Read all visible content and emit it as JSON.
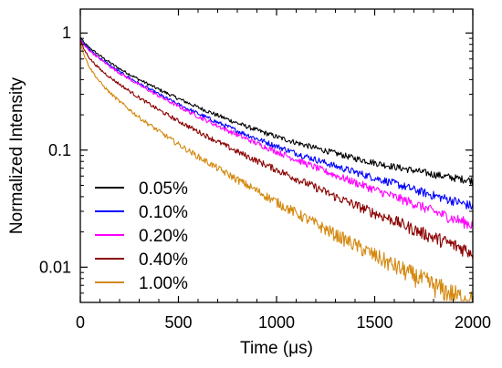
{
  "chart_data": {
    "type": "line",
    "xlabel": "Time (μs)",
    "ylabel": "Normalized Intensity",
    "xlim": [
      0,
      2000
    ],
    "ylim": [
      0.005,
      1.6
    ],
    "y_scale": "log",
    "x_ticks": [
      0,
      500,
      1000,
      1500,
      2000
    ],
    "y_ticks": [
      {
        "value": 1,
        "label": "1"
      },
      {
        "value": 0.1,
        "label": "0.1"
      },
      {
        "value": 0.01,
        "label": "0.01"
      }
    ],
    "legend": "bottom-left",
    "grid": false,
    "series": [
      {
        "name": "0.05%",
        "color": "#000000",
        "x": [
          0,
          20,
          50,
          100,
          150,
          200,
          300,
          400,
          500,
          600,
          700,
          800,
          900,
          1000,
          1100,
          1200,
          1300,
          1400,
          1500,
          1600,
          1700,
          1800,
          1900,
          2000
        ],
        "values": [
          0.92,
          0.82,
          0.74,
          0.64,
          0.56,
          0.495,
          0.4,
          0.33,
          0.275,
          0.232,
          0.198,
          0.17,
          0.148,
          0.13,
          0.116,
          0.104,
          0.094,
          0.085,
          0.078,
          0.072,
          0.067,
          0.062,
          0.058,
          0.055
        ]
      },
      {
        "name": "0.10%",
        "color": "#0000ff",
        "x": [
          0,
          20,
          50,
          100,
          150,
          200,
          300,
          400,
          500,
          600,
          700,
          800,
          900,
          1000,
          1100,
          1200,
          1300,
          1400,
          1500,
          1600,
          1700,
          1800,
          1900,
          2000
        ],
        "values": [
          0.9,
          0.8,
          0.71,
          0.61,
          0.53,
          0.465,
          0.37,
          0.3,
          0.245,
          0.205,
          0.172,
          0.146,
          0.125,
          0.108,
          0.094,
          0.083,
          0.073,
          0.065,
          0.058,
          0.052,
          0.046,
          0.041,
          0.037,
          0.033
        ]
      },
      {
        "name": "0.20%",
        "color": "#ff00ff",
        "x": [
          0,
          20,
          50,
          100,
          150,
          200,
          300,
          400,
          500,
          600,
          700,
          800,
          900,
          1000,
          1100,
          1200,
          1300,
          1400,
          1500,
          1600,
          1700,
          1800,
          1900,
          2000
        ],
        "values": [
          0.88,
          0.78,
          0.7,
          0.6,
          0.52,
          0.455,
          0.36,
          0.29,
          0.236,
          0.194,
          0.161,
          0.135,
          0.114,
          0.097,
          0.083,
          0.071,
          0.061,
          0.053,
          0.046,
          0.04,
          0.035,
          0.03,
          0.026,
          0.023
        ]
      },
      {
        "name": "0.40%",
        "color": "#8b0000",
        "x": [
          0,
          20,
          50,
          100,
          150,
          200,
          300,
          400,
          500,
          600,
          700,
          800,
          900,
          1000,
          1100,
          1200,
          1300,
          1400,
          1500,
          1600,
          1700,
          1800,
          1900,
          2000
        ],
        "values": [
          0.86,
          0.72,
          0.6,
          0.49,
          0.42,
          0.365,
          0.28,
          0.22,
          0.177,
          0.144,
          0.118,
          0.097,
          0.081,
          0.068,
          0.057,
          0.048,
          0.04,
          0.034,
          0.029,
          0.025,
          0.021,
          0.018,
          0.0155,
          0.0135
        ]
      },
      {
        "name": "1.00%",
        "color": "#d4880e",
        "x": [
          0,
          20,
          50,
          100,
          150,
          200,
          300,
          400,
          500,
          600,
          700,
          800,
          900,
          1000,
          1100,
          1200,
          1300,
          1400,
          1500,
          1600,
          1700,
          1800,
          1900,
          2000
        ],
        "values": [
          0.84,
          0.64,
          0.5,
          0.38,
          0.31,
          0.26,
          0.19,
          0.145,
          0.112,
          0.088,
          0.07,
          0.056,
          0.045,
          0.036,
          0.029,
          0.0235,
          0.019,
          0.0155,
          0.0126,
          0.0103,
          0.0085,
          0.007,
          0.0058,
          0.005
        ]
      }
    ]
  }
}
